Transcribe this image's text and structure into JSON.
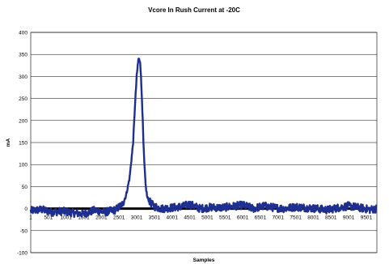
{
  "chart_data": {
    "type": "line",
    "title": "Vcore In Rush Current at -20C",
    "xlabel": "Samples",
    "ylabel": "mA",
    "ylim": [
      -100,
      400
    ],
    "yticks": [
      "400",
      "350",
      "300",
      "250",
      "200",
      "150",
      "100",
      "50",
      "0",
      "-50",
      "-100"
    ],
    "xticks": [
      "1",
      "501",
      "1001",
      "1501",
      "2001",
      "2501",
      "3001",
      "3501",
      "4001",
      "4501",
      "5001",
      "5501",
      "6001",
      "6501",
      "7001",
      "7501",
      "8001",
      "8501",
      "9001",
      "9501"
    ],
    "xlim": [
      1,
      9800
    ],
    "grid": true,
    "legend": "none",
    "line_color": "#1f2f8f",
    "series": [
      {
        "x": [
          1,
          300,
          600,
          900,
          1200,
          1500,
          1800,
          2100,
          2400,
          2600,
          2700,
          2800,
          2900,
          2950,
          3000,
          3050,
          3100,
          3150,
          3200,
          3250,
          3300,
          3400,
          3500,
          3700,
          4000,
          4300,
          4500,
          4800,
          5100,
          5400,
          5700,
          6000,
          6300,
          6600,
          6900,
          7200,
          7500,
          7800,
          8100,
          8400,
          8700,
          9000,
          9300,
          9600,
          9800
        ],
        "values": [
          -5,
          -2,
          -8,
          -6,
          -10,
          -12,
          -4,
          -8,
          -3,
          10,
          30,
          70,
          150,
          230,
          300,
          340,
          335,
          250,
          130,
          55,
          25,
          12,
          5,
          0,
          2,
          5,
          10,
          0,
          3,
          2,
          5,
          8,
          0,
          6,
          2,
          0,
          4,
          2,
          0,
          -3,
          2,
          6,
          2,
          -2,
          0
        ]
      }
    ]
  }
}
